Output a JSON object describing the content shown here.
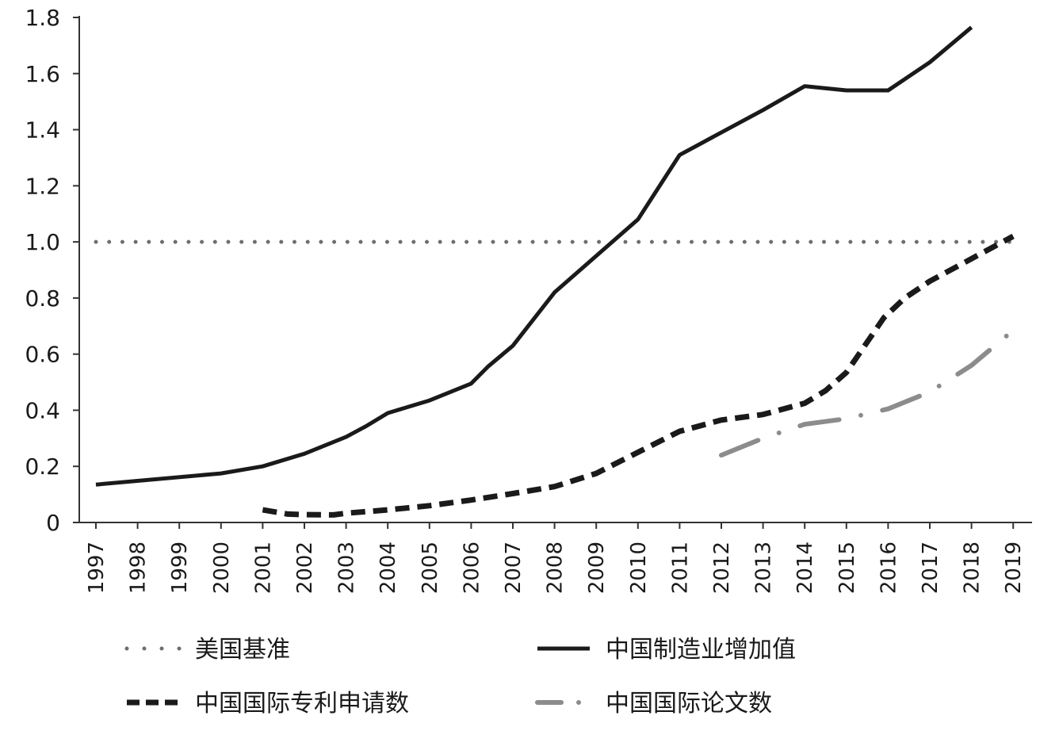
{
  "chart_data": {
    "type": "line",
    "title": "",
    "xlabel": "",
    "ylabel": "",
    "x": [
      1997,
      1998,
      1999,
      2000,
      2001,
      2002,
      2003,
      2004,
      2005,
      2006,
      2007,
      2008,
      2009,
      2010,
      2011,
      2012,
      2013,
      2014,
      2015,
      2016,
      2017,
      2018,
      2019
    ],
    "x_tick_labels": [
      "1997",
      "1998",
      "1999",
      "2000",
      "2001",
      "2002",
      "2003",
      "2004",
      "2005",
      "2006",
      "2007",
      "2008",
      "2009",
      "2010",
      "2011",
      "2012",
      "2013",
      "2014",
      "2015",
      "2016",
      "2017",
      "2018",
      "2019"
    ],
    "ylim": [
      0,
      1.8
    ],
    "y_ticks": [
      0,
      0.2,
      0.4,
      0.6,
      0.8,
      1.0,
      1.2,
      1.4,
      1.6,
      1.8
    ],
    "y_tick_labels": [
      "0",
      "0.2",
      "0.4",
      "0.6",
      "0.8",
      "1.0",
      "1.2",
      "1.4",
      "1.6",
      "1.8"
    ],
    "grid": false,
    "legend_position": "bottom",
    "series": [
      {
        "name": "美国基准",
        "style": "dotted",
        "color": "#6e6e6e",
        "points": [
          [
            1997,
            1.0
          ],
          [
            2019,
            1.0
          ]
        ]
      },
      {
        "name": "中国制造业增加值",
        "style": "solid",
        "color": "#1a1a1a",
        "points": [
          [
            1997,
            0.135
          ],
          [
            2000,
            0.175
          ],
          [
            2001,
            0.2
          ],
          [
            2002,
            0.245
          ],
          [
            2003,
            0.305
          ],
          [
            2003.5,
            0.345
          ],
          [
            2004,
            0.39
          ],
          [
            2005,
            0.435
          ],
          [
            2006,
            0.495
          ],
          [
            2006.4,
            0.555
          ],
          [
            2007,
            0.63
          ],
          [
            2008,
            0.82
          ],
          [
            2009,
            0.95
          ],
          [
            2010,
            1.08
          ],
          [
            2011,
            1.31
          ],
          [
            2012,
            1.39
          ],
          [
            2013,
            1.47
          ],
          [
            2014,
            1.555
          ],
          [
            2015,
            1.54
          ],
          [
            2016,
            1.54
          ],
          [
            2017,
            1.64
          ],
          [
            2018,
            1.765
          ]
        ]
      },
      {
        "name": "中国国际专利申请数",
        "style": "dashed",
        "color": "#1a1a1a",
        "points": [
          [
            2001,
            0.045
          ],
          [
            2001.6,
            0.03
          ],
          [
            2002,
            0.028
          ],
          [
            2002.7,
            0.027
          ],
          [
            2003,
            0.033
          ],
          [
            2004,
            0.045
          ],
          [
            2005,
            0.06
          ],
          [
            2006,
            0.08
          ],
          [
            2007,
            0.103
          ],
          [
            2008,
            0.128
          ],
          [
            2009,
            0.175
          ],
          [
            2010,
            0.25
          ],
          [
            2011,
            0.325
          ],
          [
            2012,
            0.365
          ],
          [
            2013,
            0.385
          ],
          [
            2014,
            0.425
          ],
          [
            2014.5,
            0.47
          ],
          [
            2015,
            0.535
          ],
          [
            2015.3,
            0.6
          ],
          [
            2015.9,
            0.73
          ],
          [
            2016.4,
            0.8
          ],
          [
            2017,
            0.86
          ],
          [
            2018,
            0.94
          ],
          [
            2019,
            1.02
          ]
        ]
      },
      {
        "name": "中国国际论文数",
        "style": "dash-dot",
        "color": "#8c8c8c",
        "points": [
          [
            2012,
            0.24
          ],
          [
            2013,
            0.3
          ],
          [
            2014,
            0.35
          ],
          [
            2015,
            0.37
          ],
          [
            2016,
            0.405
          ],
          [
            2017,
            0.465
          ],
          [
            2018,
            0.56
          ],
          [
            2019,
            0.685
          ]
        ]
      }
    ]
  }
}
